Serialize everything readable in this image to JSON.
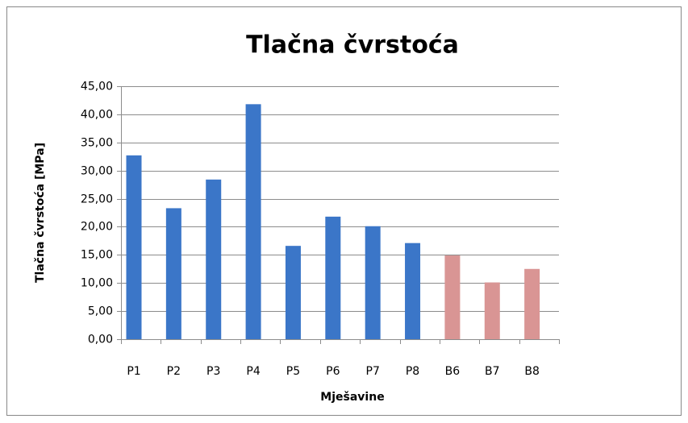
{
  "chart_data": {
    "type": "bar",
    "title": "Tlačna čvrstoća",
    "x_label": "Mješavine",
    "y_label": "Tlačna čvrstoća  [MPa]",
    "categories": [
      "P1",
      "P2",
      "P3",
      "P4",
      "P5",
      "P6",
      "P7",
      "P8",
      "B6",
      "B7",
      "B8"
    ],
    "values": [
      32.7,
      23.3,
      28.4,
      41.8,
      16.6,
      21.8,
      20.1,
      17.1,
      14.9,
      10.1,
      12.5
    ],
    "colors": [
      "#3b76c8",
      "#3b76c8",
      "#3b76c8",
      "#3b76c8",
      "#3b76c8",
      "#3b76c8",
      "#3b76c8",
      "#3b76c8",
      "#d99594",
      "#d99594",
      "#d99594"
    ],
    "ylim": [
      0,
      45
    ],
    "yticks": [
      {
        "value": 0,
        "label": "0,00"
      },
      {
        "value": 5,
        "label": "5,00"
      },
      {
        "value": 10,
        "label": "10,00"
      },
      {
        "value": 15,
        "label": "15,00"
      },
      {
        "value": 20,
        "label": "20,00"
      },
      {
        "value": 25,
        "label": "25,00"
      },
      {
        "value": 30,
        "label": "30,00"
      },
      {
        "value": 35,
        "label": "35,00"
      },
      {
        "value": 40,
        "label": "40,00"
      },
      {
        "value": 45,
        "label": "45,00"
      }
    ],
    "grid": true
  }
}
